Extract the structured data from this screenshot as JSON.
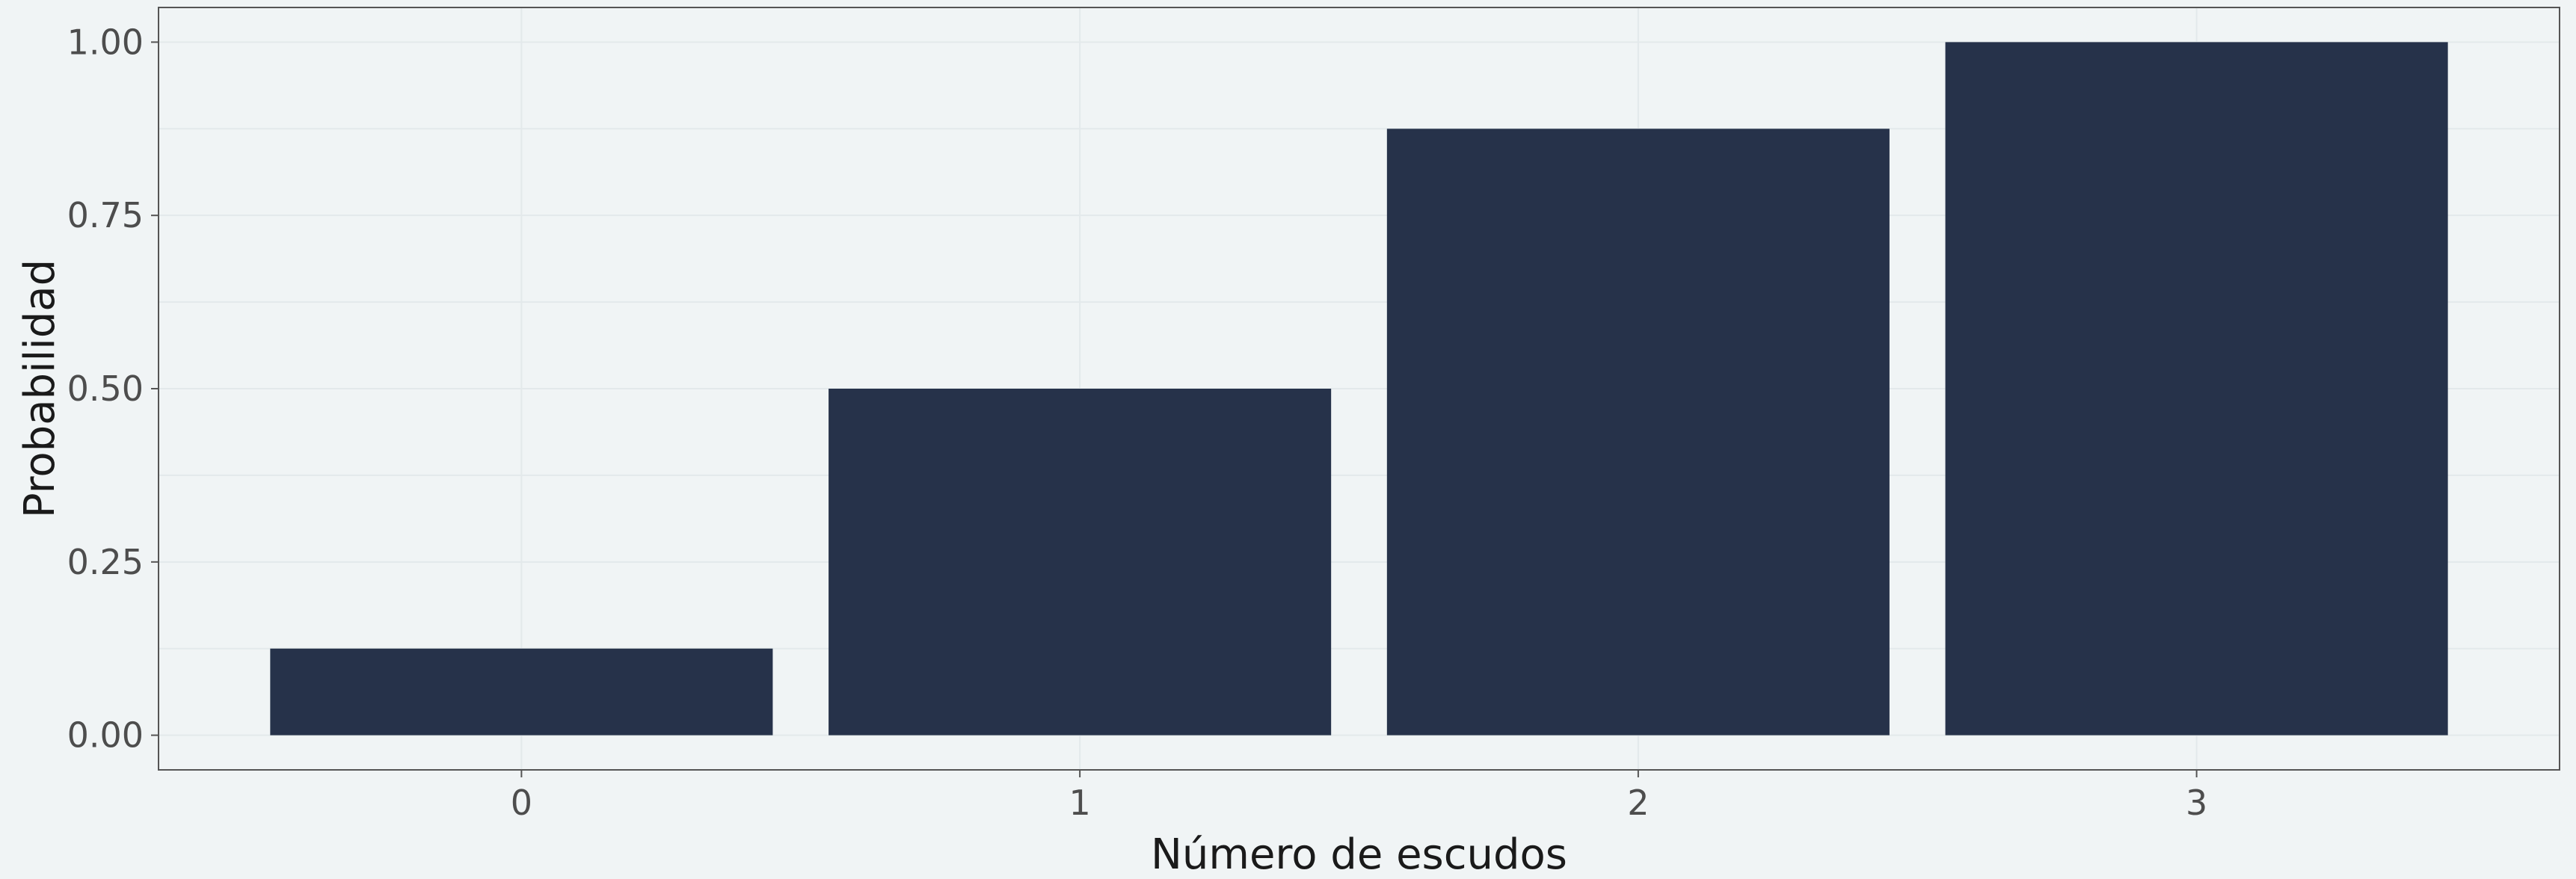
{
  "chart_data": {
    "type": "bar",
    "title": "",
    "xlabel": "Número de escudos",
    "ylabel": "Probabilidad",
    "categories": [
      "0",
      "1",
      "2",
      "3"
    ],
    "values": [
      0.125,
      0.5,
      0.875,
      1.0
    ],
    "ylim": [
      -0.05,
      1.05
    ],
    "yticks": [
      0,
      0.25,
      0.5,
      0.75,
      1.0
    ],
    "ytick_labels": [
      "0.00",
      "0.25",
      "0.50",
      "0.75",
      "1.00"
    ],
    "grid": true,
    "legend": "none",
    "colors": {
      "bar": "#26324a",
      "background": "#f0f4f5",
      "panel_border": "#555555",
      "grid": "#e3e9eb"
    }
  }
}
